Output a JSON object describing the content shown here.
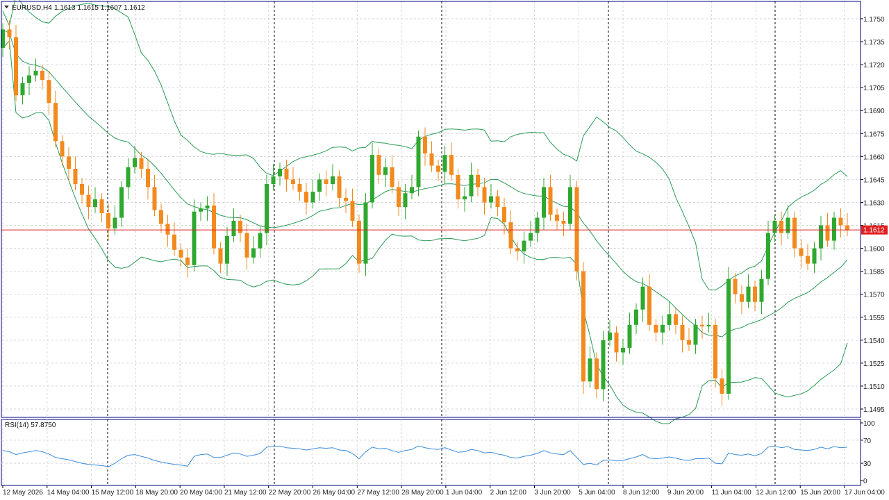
{
  "window": {
    "title": "EURUSD,H4",
    "ohlc_readout": "1.1613 1.1615 1.1607 1.1612"
  },
  "rsi_panel": {
    "label": "RSI(14) 57.8750"
  },
  "colors": {
    "bull": "#2fa82f",
    "bear": "#f28a1e",
    "bands": "#2a9a55",
    "price_line": "#e02020",
    "price_label_bg": "#e02020",
    "rsi_line": "#3a8bd8",
    "grid": "#d6d6d6",
    "axis": "#000080"
  },
  "chart_data": [
    {
      "type": "candlestick",
      "symbol": "EURUSD",
      "timeframe": "H4",
      "ylim": [
        1.1485,
        1.1765
      ],
      "yticks": [
        "1.1750",
        "1.1735",
        "1.1720",
        "1.1705",
        "1.1690",
        "1.1675",
        "1.1660",
        "1.1645",
        "1.1630",
        "1.1615",
        "1.1600",
        "1.1585",
        "1.1570",
        "1.1555",
        "1.1540",
        "1.1525",
        "1.1510",
        "1.1495"
      ],
      "xlabels": [
        "12 May 2026",
        "14 May 04:00",
        "15 May 12:00",
        "18 May 20:00",
        "20 May 04:00",
        "21 May 12:00",
        "22 May 20:00",
        "26 May 04:00",
        "27 May 12:00",
        "28 May 20:00",
        "1 Jun 04:00",
        "2 Jun 12:00",
        "3 Jun 20:00",
        "5 Jun 04:00",
        "8 Jun 12:00",
        "9 Jun 20:00",
        "11 Jun 04:00",
        "12 Jun 12:00",
        "15 Jun 20:00",
        "17 Jun 04:00"
      ],
      "current_price": "1.1612",
      "overlay": "Bollinger Bands",
      "closes": [
        1.1743,
        1.1738,
        1.17,
        1.1708,
        1.1713,
        1.1716,
        1.171,
        1.1695,
        1.167,
        1.166,
        1.1652,
        1.1642,
        1.1635,
        1.1627,
        1.1632,
        1.1623,
        1.1613,
        1.162,
        1.164,
        1.1653,
        1.1659,
        1.1652,
        1.164,
        1.1625,
        1.1616,
        1.1609,
        1.1599,
        1.1594,
        1.1589,
        1.1624,
        1.1626,
        1.1628,
        1.16,
        1.159,
        1.1608,
        1.1618,
        1.161,
        1.1594,
        1.16,
        1.161,
        1.1642,
        1.1647,
        1.1652,
        1.1645,
        1.1642,
        1.1637,
        1.163,
        1.1637,
        1.1645,
        1.1642,
        1.1647,
        1.1633,
        1.1631,
        1.1618,
        1.159,
        1.163,
        1.1661,
        1.1648,
        1.1653,
        1.164,
        1.1627,
        1.1636,
        1.164,
        1.1673,
        1.1662,
        1.1654,
        1.165,
        1.1661,
        1.1648,
        1.1632,
        1.1634,
        1.1648,
        1.164,
        1.163,
        1.1634,
        1.1627,
        1.1617,
        1.16,
        1.1598,
        1.1605,
        1.161,
        1.162,
        1.164,
        1.1622,
        1.1618,
        1.1616,
        1.164,
        1.1585,
        1.1513,
        1.1528,
        1.1508,
        1.154,
        1.1545,
        1.1532,
        1.1535,
        1.155,
        1.156,
        1.1575,
        1.155,
        1.1545,
        1.155,
        1.1557,
        1.155,
        1.154,
        1.1537,
        1.155,
        1.1549,
        1.155,
        1.1515,
        1.1505,
        1.158,
        1.157,
        1.1565,
        1.1575,
        1.1565,
        1.158,
        1.161,
        1.1618,
        1.161,
        1.162,
        1.16,
        1.1595,
        1.159,
        1.16,
        1.1615,
        1.1605,
        1.162,
        1.1615,
        1.1612
      ]
    },
    {
      "type": "line",
      "name": "RSI(14)",
      "ylim": [
        0,
        100
      ],
      "yticks": [
        "100",
        "70",
        "30",
        "0"
      ],
      "last_value": 57.875,
      "values": [
        52,
        50,
        45,
        48,
        50,
        52,
        50,
        46,
        40,
        38,
        36,
        33,
        30,
        28,
        27,
        26,
        24,
        30,
        38,
        44,
        45,
        42,
        39,
        35,
        32,
        30,
        28,
        27,
        25,
        42,
        45,
        46,
        40,
        40,
        44,
        48,
        46,
        42,
        44,
        47,
        58,
        59,
        60,
        57,
        56,
        55,
        53,
        55,
        57,
        56,
        57,
        53,
        52,
        47,
        38,
        50,
        58,
        55,
        56,
        52,
        49,
        52,
        54,
        60,
        57,
        55,
        54,
        57,
        53,
        49,
        50,
        54,
        52,
        48,
        49,
        46,
        44,
        40,
        39,
        42,
        44,
        47,
        52,
        48,
        46,
        45,
        52,
        40,
        28,
        30,
        27,
        35,
        36,
        34,
        35,
        38,
        41,
        45,
        39,
        38,
        39,
        41,
        39,
        36,
        35,
        38,
        38,
        39,
        30,
        29,
        48,
        45,
        44,
        46,
        43,
        47,
        58,
        60,
        57,
        59,
        54,
        53,
        52,
        54,
        58,
        55,
        59,
        57,
        58
      ]
    }
  ]
}
